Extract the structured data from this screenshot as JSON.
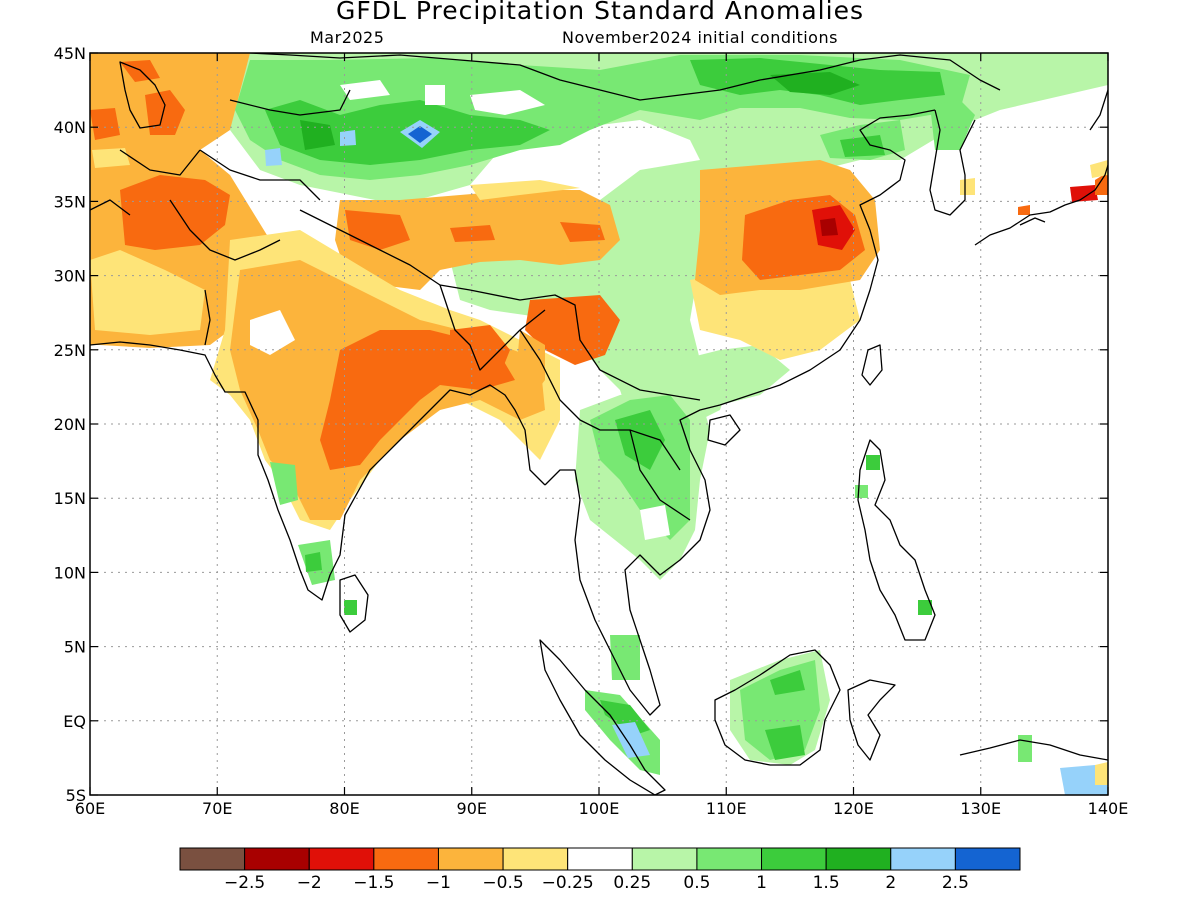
{
  "title": "GFDL Precipitation Standard Anomalies",
  "subtitle_left": "Mar2025",
  "subtitle_right": "November2024 initial conditions",
  "map": {
    "lon_range": [
      60,
      140
    ],
    "lat_range": [
      -5,
      45
    ],
    "lon_ticks": [
      "60E",
      "70E",
      "80E",
      "90E",
      "100E",
      "110E",
      "120E",
      "130E",
      "140E"
    ],
    "lat_ticks": [
      "5S",
      "EQ",
      "5N",
      "10N",
      "15N",
      "20N",
      "25N",
      "30N",
      "35N",
      "40N",
      "45N"
    ],
    "grid": true
  },
  "colorbar": {
    "colors": [
      "#7a5040",
      "#a80000",
      "#e01008",
      "#f86a10",
      "#fcb43c",
      "#fee478",
      "#ffffff",
      "#b8f5a8",
      "#78e873",
      "#3ccc3c",
      "#20b020",
      "#96d2fa",
      "#1464d2"
    ],
    "labels": [
      "−2.5",
      "−2",
      "−1.5",
      "−1",
      "−0.5",
      "−0.25",
      "0.25",
      "0.5",
      "1",
      "1.5",
      "2",
      "2.5"
    ]
  }
}
